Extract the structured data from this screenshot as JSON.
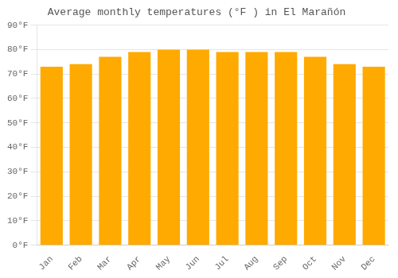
{
  "chart_data": {
    "type": "bar",
    "title": "Average monthly temperatures (°F ) in El Marañón",
    "categories": [
      "Jan",
      "Feb",
      "Mar",
      "Apr",
      "May",
      "Jun",
      "Jul",
      "Aug",
      "Sep",
      "Oct",
      "Nov",
      "Dec"
    ],
    "values": [
      73,
      74,
      77,
      79,
      80,
      80,
      79,
      79,
      79,
      77,
      74,
      73
    ],
    "color": "#FFAA00",
    "ylim": [
      0,
      90
    ],
    "yticks": [
      {
        "value": 0,
        "label": "0°F"
      },
      {
        "value": 10,
        "label": "10°F"
      },
      {
        "value": 20,
        "label": "20°F"
      },
      {
        "value": 30,
        "label": "30°F"
      },
      {
        "value": 40,
        "label": "40°F"
      },
      {
        "value": 50,
        "label": "50°F"
      },
      {
        "value": 60,
        "label": "60°F"
      },
      {
        "value": 70,
        "label": "70°F"
      },
      {
        "value": 80,
        "label": "80°F"
      },
      {
        "value": 90,
        "label": "90°F"
      }
    ],
    "grid": true
  }
}
